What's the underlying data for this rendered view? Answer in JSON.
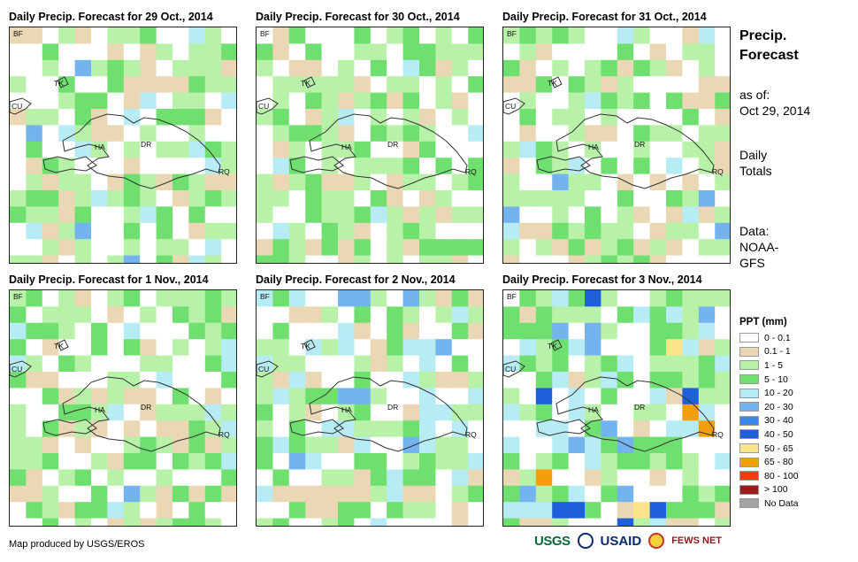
{
  "panels": [
    {
      "title": "Daily Precip. Forecast for 29 Oct., 2014"
    },
    {
      "title": "Daily Precip. Forecast for 30 Oct., 2014"
    },
    {
      "title": "Daily Precip. Forecast for 31 Oct., 2014"
    },
    {
      "title": "Daily Precip. Forecast for 1 Nov., 2014"
    },
    {
      "title": "Daily Precip. Forecast for 2 Nov., 2014"
    },
    {
      "title": "Daily Precip. Forecast for 3 Nov., 2014"
    }
  ],
  "map_labels": {
    "bf": "BF",
    "tk": "TK",
    "cu": "CU",
    "ha": "HA",
    "dr": "DR",
    "rq": "RQ"
  },
  "side": {
    "title_line1": "Precip.",
    "title_line2": "Forecast",
    "asof_line1": "as of:",
    "asof_line2": "Oct 29, 2014",
    "totals_line1": "Daily",
    "totals_line2": "Totals",
    "data_line1": "Data:",
    "data_line2": "NOAA-",
    "data_line3": "GFS"
  },
  "legend": {
    "title": "PPT (mm)",
    "items": [
      {
        "label": "0 - 0.1",
        "color": "#ffffff"
      },
      {
        "label": "0.1 - 1",
        "color": "#ead7b4"
      },
      {
        "label": "1 - 5",
        "color": "#b8f2a9"
      },
      {
        "label": "5 - 10",
        "color": "#6fe06f"
      },
      {
        "label": "10 - 20",
        "color": "#b7ecf5"
      },
      {
        "label": "20 - 30",
        "color": "#74b4ee"
      },
      {
        "label": "30 - 40",
        "color": "#3f87e6"
      },
      {
        "label": "40 - 50",
        "color": "#1f5fd9"
      },
      {
        "label": "50 - 65",
        "color": "#fde68a"
      },
      {
        "label": "65 - 80",
        "color": "#f59e0b"
      },
      {
        "label": "80 - 100",
        "color": "#f03c10"
      },
      {
        "label": "> 100",
        "color": "#9c1c1c"
      },
      {
        "label": "No Data",
        "color": "#a3a3a3"
      }
    ]
  },
  "credit": "Map produced by USGS/EROS",
  "logos": {
    "usgs": "USGS",
    "usaid": "USAID",
    "fews": "FEWS NET"
  }
}
